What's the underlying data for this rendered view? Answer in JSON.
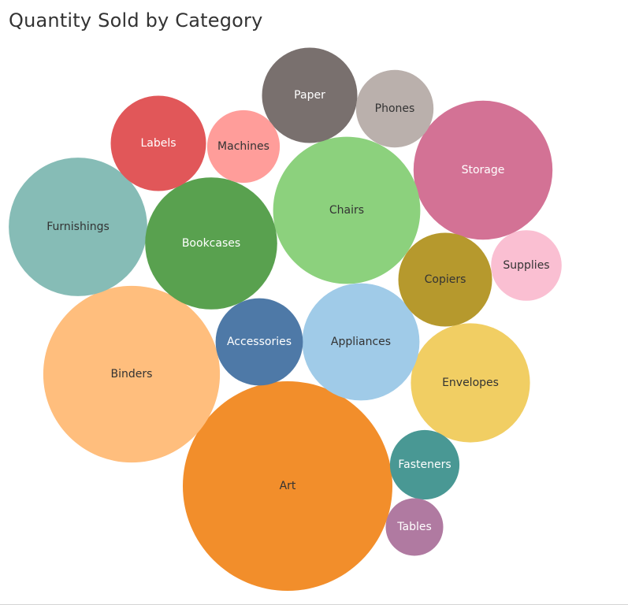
{
  "chart_data": {
    "type": "bubble",
    "title": "Quantity Sold by Category",
    "size_measure": "Quantity",
    "bubbles": [
      {
        "category": "Art",
        "value": 3000,
        "color": "#F28E2B",
        "label_color": "#333333"
      },
      {
        "category": "Binders",
        "value": 2130,
        "color": "#FFBE7D",
        "label_color": "#333333"
      },
      {
        "category": "Storage",
        "value": 1320,
        "color": "#D37295",
        "label_color": "#ffffff"
      },
      {
        "category": "Furnishings",
        "value": 1310,
        "color": "#86BCB6",
        "label_color": "#333333"
      },
      {
        "category": "Chairs",
        "value": 1480,
        "color": "#8CD17D",
        "label_color": "#333333"
      },
      {
        "category": "Bookcases",
        "value": 1190,
        "color": "#59A14F",
        "label_color": "#ffffff"
      },
      {
        "category": "Envelopes",
        "value": 970,
        "color": "#F1CE63",
        "label_color": "#333333"
      },
      {
        "category": "Appliances",
        "value": 940,
        "color": "#A0CBE8",
        "label_color": "#333333"
      },
      {
        "category": "Labels",
        "value": 620,
        "color": "#E15759",
        "label_color": "#ffffff"
      },
      {
        "category": "Copiers",
        "value": 600,
        "color": "#B6992D",
        "label_color": "#333333"
      },
      {
        "category": "Paper",
        "value": 620,
        "color": "#79706E",
        "label_color": "#ffffff"
      },
      {
        "category": "Accessories",
        "value": 520,
        "color": "#4E79A7",
        "label_color": "#ffffff"
      },
      {
        "category": "Phones",
        "value": 410,
        "color": "#BAB0AC",
        "label_color": "#333333"
      },
      {
        "category": "Machines",
        "value": 360,
        "color": "#FF9D9A",
        "label_color": "#333333"
      },
      {
        "category": "Supplies",
        "value": 340,
        "color": "#FABFD2",
        "label_color": "#333333"
      },
      {
        "category": "Fasteners",
        "value": 330,
        "color": "#499894",
        "label_color": "#ffffff"
      },
      {
        "category": "Tables",
        "value": 226,
        "color": "#B07AA1",
        "label_color": "#ffffff"
      }
    ]
  }
}
